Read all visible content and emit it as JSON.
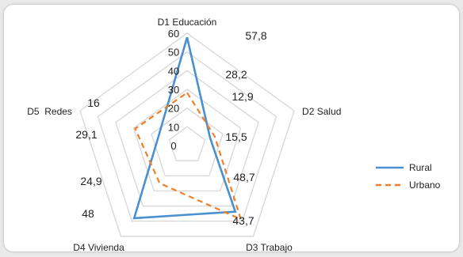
{
  "chart_data": {
    "type": "radar",
    "axes": [
      "D1 Educación",
      "D2 Salud",
      "D3 Trabajo",
      "D4 Vivienda",
      "D5  Redes"
    ],
    "rlim": [
      0,
      60
    ],
    "rticks": [
      "0",
      "10",
      "20",
      "30",
      "40",
      "50",
      "60"
    ],
    "grid": true,
    "legend_position": "right",
    "series": [
      {
        "name": "Rural",
        "values": [
          57.8,
          12.9,
          43.7,
          48,
          16
        ],
        "value_labels": [
          "57,8",
          "12,9",
          "43,7",
          "48",
          "16"
        ],
        "color": "#4a90d0",
        "dash": "solid"
      },
      {
        "name": "Urbano",
        "values": [
          28.2,
          15.5,
          48.7,
          24.9,
          29.1
        ],
        "value_labels": [
          "28,2",
          "15,5",
          "48,7",
          "24,9",
          "29,1"
        ],
        "color": "#f07f2a",
        "dash": "dashed"
      }
    ]
  }
}
